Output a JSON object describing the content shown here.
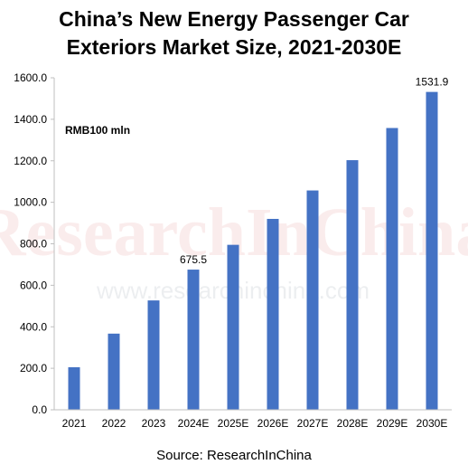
{
  "title_line1": "China’s New Energy Passenger Car",
  "title_line2": "Exteriors Market Size, 2021-2030E",
  "unit_label": "RMB100 mln",
  "source": "Source: ResearchInChina",
  "watermark": {
    "main": "ResearchInChina",
    "url": "www.researchinchina.com"
  },
  "colors": {
    "bar": "#4472C4",
    "axis": "#bfbfbf"
  },
  "chart_data": {
    "type": "bar",
    "title": "China’s New Energy Passenger Car Exteriors Market Size, 2021-2030E",
    "categories": [
      "2021",
      "2022",
      "2023",
      "2024E",
      "2025E",
      "2026E",
      "2027E",
      "2028E",
      "2029E",
      "2030E"
    ],
    "values": [
      205,
      367,
      527,
      675.5,
      795,
      920,
      1057,
      1203,
      1358,
      1531.9
    ],
    "ylim": [
      0,
      1600
    ],
    "yticks": [
      0,
      200,
      400,
      600,
      800,
      1000,
      1200,
      1400,
      1600
    ],
    "ytick_labels": [
      "0.0",
      "200.0",
      "400.0",
      "600.0",
      "800.0",
      "1000.0",
      "1200.0",
      "1400.0",
      "1600.0"
    ],
    "data_labels": [
      {
        "index": 3,
        "text": "675.5"
      },
      {
        "index": 9,
        "text": "1531.9"
      }
    ],
    "grid": false,
    "legend": "none"
  }
}
